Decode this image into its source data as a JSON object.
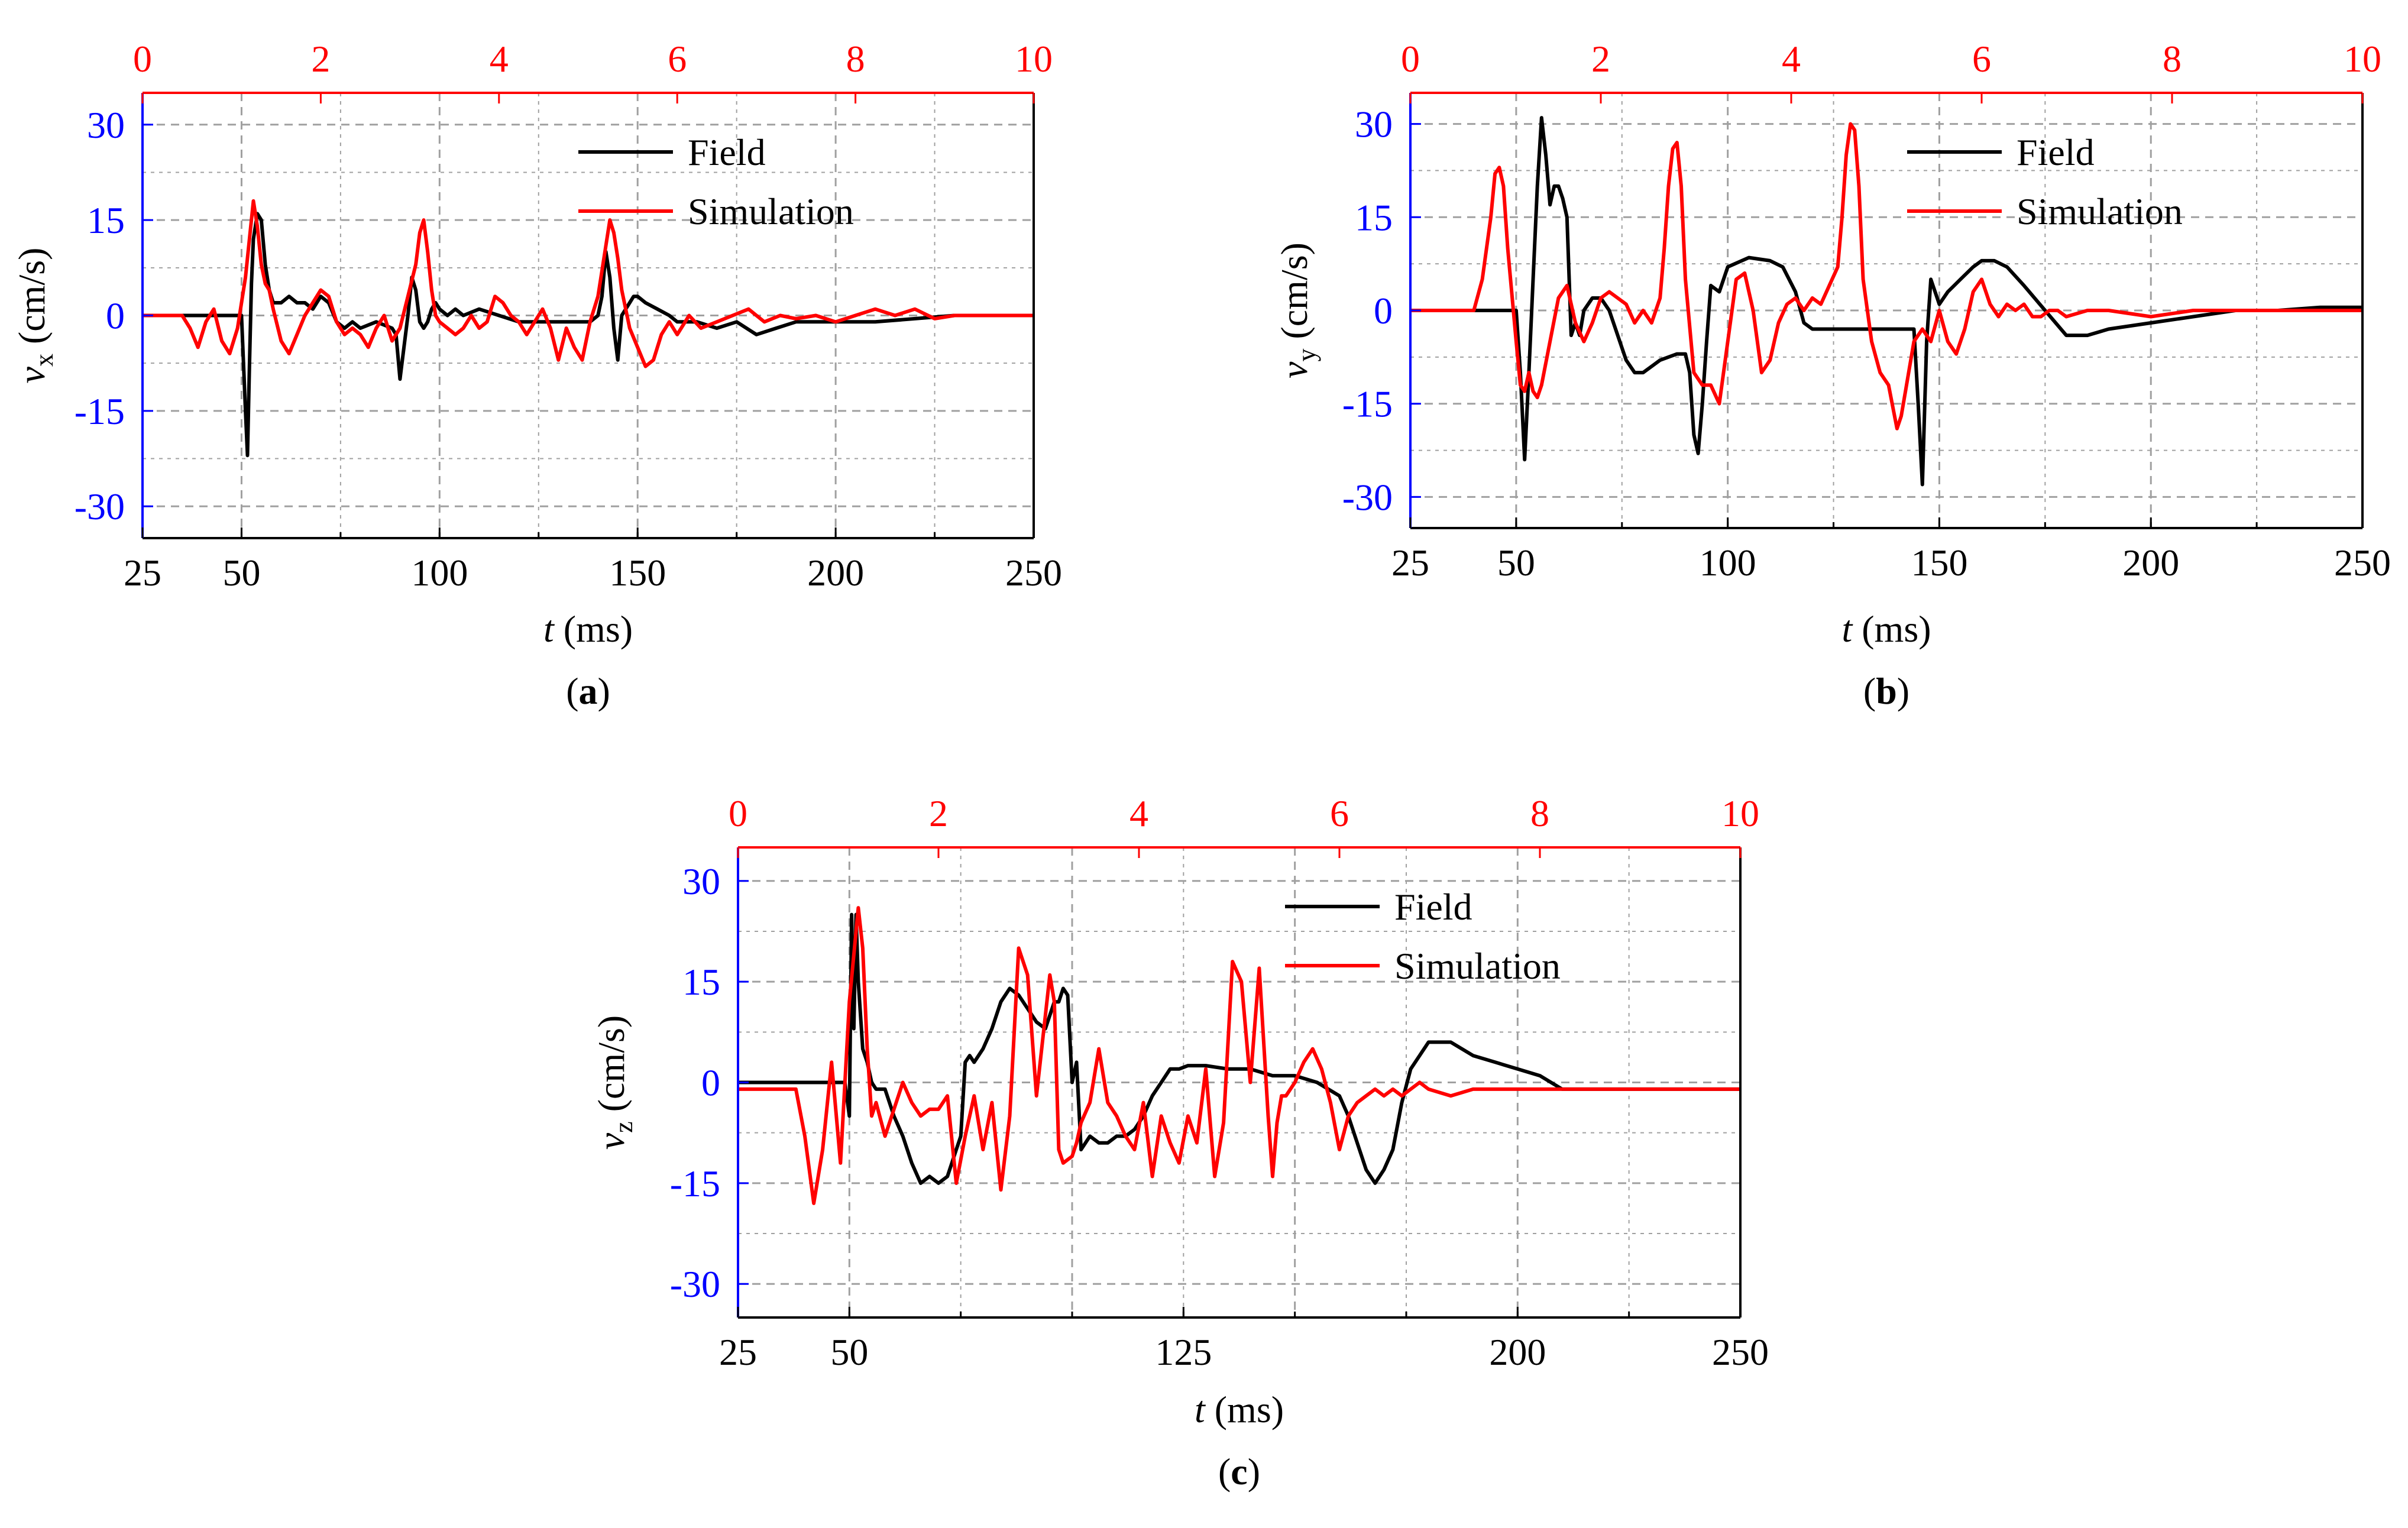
{
  "colors": {
    "field": "#000000",
    "simulation": "#ff0000",
    "left_axis": "#0000ff",
    "top_axis": "#ff0000",
    "grid": "#a0a0a0"
  },
  "chart_data": [
    {
      "id": "a",
      "type": "line",
      "panel_label": "a",
      "ylabel_symbol": "v",
      "ylabel_sub": "x",
      "ylabel_unit": " (cm/s)",
      "xlabel_symbol": "t",
      "xlabel_unit": " (ms)",
      "xlim": [
        25,
        250
      ],
      "ylim": [
        -35,
        35
      ],
      "xticks": [
        "25",
        "50",
        "100",
        "150",
        "200",
        "250"
      ],
      "yticks": [
        "30",
        "15",
        "0",
        "-15",
        "-30"
      ],
      "top_xlim": [
        0,
        10
      ],
      "top_xticks": [
        "0",
        "2",
        "4",
        "6",
        "8",
        "10"
      ],
      "legend": {
        "position": "top-right",
        "entries": [
          "Field",
          "Simulation"
        ]
      },
      "series": [
        {
          "name": "Field",
          "x": [
            25,
            48,
            50,
            51,
            51.5,
            52,
            52.5,
            53,
            54,
            55,
            56,
            57,
            58,
            60,
            62,
            64,
            66,
            68,
            70,
            72,
            74,
            76,
            78,
            80,
            84,
            88,
            89,
            90,
            91,
            92,
            93,
            94,
            95,
            96,
            97,
            98,
            99,
            100,
            102,
            104,
            106,
            110,
            115,
            120,
            125,
            130,
            135,
            138,
            140,
            141,
            142,
            143,
            144,
            145,
            146,
            147,
            148,
            149,
            150,
            152,
            155,
            158,
            160,
            165,
            170,
            175,
            180,
            185,
            190,
            200,
            210,
            220,
            230,
            240,
            250
          ],
          "y": [
            0,
            0,
            0,
            -15,
            -22,
            -8,
            5,
            12,
            16,
            15,
            8,
            4,
            2,
            2,
            3,
            2,
            2,
            1,
            3,
            2,
            -1,
            -2,
            -1,
            -2,
            -1,
            -2,
            -3,
            -10,
            -5,
            0,
            6,
            4,
            -1,
            -2,
            -1,
            1,
            2,
            1,
            0,
            1,
            0,
            1,
            0,
            -1,
            -1,
            -1,
            -1,
            -1,
            0,
            3,
            10,
            6,
            -2,
            -7,
            0,
            1,
            2,
            3,
            3,
            2,
            1,
            0,
            -1,
            -1,
            -2,
            -1,
            -3,
            -2,
            -1,
            -1,
            -1,
            -0.5,
            0,
            0,
            0
          ]
        },
        {
          "name": "Simulation",
          "x": [
            25,
            35,
            37,
            39,
            41,
            43,
            45,
            47,
            49,
            51,
            52,
            53,
            54,
            55,
            56,
            57,
            58,
            60,
            62,
            64,
            66,
            68,
            70,
            72,
            74,
            76,
            78,
            80,
            82,
            84,
            86,
            88,
            90,
            92,
            94,
            95,
            96,
            97,
            98,
            99,
            100,
            102,
            104,
            106,
            108,
            110,
            112,
            114,
            116,
            118,
            120,
            122,
            124,
            126,
            128,
            130,
            132,
            134,
            136,
            138,
            140,
            142,
            143,
            144,
            145,
            146,
            147,
            148,
            150,
            152,
            154,
            156,
            158,
            160,
            163,
            166,
            170,
            174,
            178,
            182,
            186,
            190,
            195,
            200,
            205,
            210,
            215,
            220,
            225,
            230,
            240,
            250
          ],
          "y": [
            0,
            0,
            -2,
            -5,
            -1,
            1,
            -4,
            -6,
            -2,
            6,
            12,
            18,
            14,
            8,
            5,
            4,
            1,
            -4,
            -6,
            -3,
            0,
            2,
            4,
            3,
            -1,
            -3,
            -2,
            -3,
            -5,
            -2,
            0,
            -4,
            -2,
            3,
            8,
            13,
            15,
            10,
            4,
            0,
            -1,
            -2,
            -3,
            -2,
            0,
            -2,
            -1,
            3,
            2,
            0,
            -1,
            -3,
            -1,
            1,
            -2,
            -7,
            -2,
            -5,
            -7,
            -1,
            3,
            11,
            15,
            13,
            9,
            4,
            1,
            -2,
            -5,
            -8,
            -7,
            -3,
            -1,
            -3,
            0,
            -2,
            -1,
            0,
            1,
            -1,
            0,
            -0.5,
            0,
            -1,
            0,
            1,
            0,
            1,
            -0.5,
            0,
            0,
            0
          ]
        }
      ]
    },
    {
      "id": "b",
      "type": "line",
      "panel_label": "b",
      "ylabel_symbol": "v",
      "ylabel_sub": "y",
      "ylabel_unit": " (cm/s)",
      "xlabel_symbol": "t",
      "xlabel_unit": " (ms)",
      "xlim": [
        25,
        250
      ],
      "ylim": [
        -35,
        35
      ],
      "xticks": [
        "25",
        "50",
        "100",
        "150",
        "200",
        "250"
      ],
      "yticks": [
        "30",
        "15",
        "0",
        "-15",
        "-30"
      ],
      "top_xlim": [
        0,
        10
      ],
      "top_xticks": [
        "0",
        "2",
        "4",
        "6",
        "8",
        "10"
      ],
      "legend": {
        "position": "top-right",
        "entries": [
          "Field",
          "Simulation"
        ]
      },
      "series": [
        {
          "name": "Field",
          "x": [
            25,
            50,
            51,
            52,
            53,
            54,
            55,
            56,
            57,
            58,
            59,
            60,
            61,
            62,
            63,
            64,
            65,
            66,
            68,
            70,
            72,
            74,
            76,
            78,
            80,
            84,
            88,
            90,
            91,
            92,
            93,
            94,
            95,
            96,
            98,
            100,
            105,
            110,
            113,
            116,
            118,
            120,
            125,
            130,
            140,
            144,
            145,
            146,
            147,
            148,
            149,
            150,
            152,
            155,
            158,
            160,
            163,
            166,
            170,
            175,
            180,
            185,
            190,
            200,
            210,
            220,
            230,
            240,
            250
          ],
          "y": [
            0,
            0,
            -10,
            -24,
            -10,
            5,
            20,
            31,
            25,
            17,
            20,
            20,
            18,
            15,
            -4,
            -2,
            -4,
            0,
            2,
            2,
            0,
            -4,
            -8,
            -10,
            -10,
            -8,
            -7,
            -7,
            -10,
            -20,
            -23,
            -15,
            -5,
            4,
            3,
            7,
            8.5,
            8,
            7,
            3,
            -2,
            -3,
            -3,
            -3,
            -3,
            -3,
            -15,
            -28,
            -5,
            5,
            3,
            1,
            3,
            5,
            7,
            8,
            8,
            7,
            4,
            0,
            -4,
            -4,
            -3,
            -2,
            -1,
            0,
            0,
            0.5,
            0.5
          ]
        },
        {
          "name": "Simulation",
          "x": [
            25,
            38,
            40,
            42,
            44,
            45,
            46,
            47,
            48,
            50,
            51,
            52,
            53,
            54,
            55,
            56,
            58,
            60,
            62,
            64,
            66,
            68,
            70,
            72,
            74,
            76,
            78,
            80,
            82,
            84,
            85,
            86,
            87,
            88,
            89,
            90,
            92,
            94,
            96,
            98,
            100,
            102,
            104,
            106,
            108,
            110,
            112,
            114,
            116,
            118,
            120,
            122,
            124,
            126,
            127,
            128,
            129,
            130,
            131,
            132,
            134,
            136,
            138,
            140,
            141,
            142,
            144,
            146,
            148,
            150,
            152,
            154,
            156,
            158,
            160,
            162,
            164,
            166,
            168,
            170,
            172,
            174,
            176,
            178,
            180,
            185,
            190,
            200,
            210,
            220,
            230,
            240,
            250
          ],
          "y": [
            0,
            0,
            0,
            5,
            15,
            22,
            23,
            20,
            10,
            -5,
            -12,
            -13,
            -10,
            -13,
            -14,
            -12,
            -5,
            2,
            4,
            -2,
            -5,
            -2,
            2,
            3,
            2,
            1,
            -2,
            0,
            -2,
            2,
            10,
            20,
            26,
            27,
            20,
            5,
            -10,
            -12,
            -12,
            -15,
            -5,
            5,
            6,
            0,
            -10,
            -8,
            -2,
            1,
            2,
            0,
            2,
            1,
            4,
            7,
            15,
            25,
            30,
            29,
            20,
            5,
            -5,
            -10,
            -12,
            -19,
            -17,
            -13,
            -5,
            -3,
            -5,
            0,
            -5,
            -7,
            -3,
            3,
            5,
            1,
            -1,
            1,
            0,
            1,
            -1,
            -1,
            0,
            0,
            -1,
            0,
            0,
            -1,
            0,
            0,
            0,
            0,
            0
          ]
        }
      ]
    },
    {
      "id": "c",
      "type": "line",
      "panel_label": "c",
      "ylabel_symbol": "v",
      "ylabel_sub": "z",
      "ylabel_unit": " (cm/s)",
      "xlabel_symbol": "t",
      "xlabel_unit": " (ms)",
      "xlim": [
        25,
        250
      ],
      "ylim": [
        -35,
        35
      ],
      "xticks": [
        "25",
        "50",
        "125",
        "200",
        "250"
      ],
      "yticks": [
        "30",
        "15",
        "0",
        "-15",
        "-30"
      ],
      "top_xlim": [
        0,
        10
      ],
      "top_xticks": [
        "0",
        "2",
        "4",
        "6",
        "8",
        "10"
      ],
      "legend": {
        "position": "top-right",
        "entries": [
          "Field",
          "Simulation"
        ]
      },
      "series": [
        {
          "name": "Field",
          "x": [
            25,
            49,
            50,
            50.5,
            51,
            51.5,
            52,
            53,
            54,
            55,
            56,
            58,
            60,
            62,
            64,
            66,
            68,
            70,
            72,
            74,
            75,
            76,
            77,
            78,
            80,
            82,
            84,
            86,
            88,
            90,
            92,
            94,
            96,
            97,
            98,
            99,
            100,
            101,
            102,
            104,
            106,
            108,
            110,
            112,
            114,
            116,
            118,
            120,
            122,
            124,
            126,
            130,
            135,
            140,
            145,
            150,
            155,
            160,
            162,
            164,
            166,
            168,
            170,
            172,
            174,
            176,
            178,
            180,
            185,
            190,
            195,
            200,
            205,
            210,
            220,
            230,
            240,
            250
          ],
          "y": [
            0,
            0,
            -5,
            25,
            8,
            25,
            15,
            5,
            3,
            0,
            -1,
            -1,
            -5,
            -8,
            -12,
            -15,
            -14,
            -15,
            -14,
            -10,
            -8,
            3,
            4,
            3,
            5,
            8,
            12,
            14,
            13,
            11,
            9,
            8,
            12,
            12,
            14,
            13,
            0,
            3,
            -10,
            -8,
            -9,
            -9,
            -8,
            -8,
            -7,
            -5,
            -2,
            0,
            2,
            2,
            2.5,
            2.5,
            2,
            2,
            1,
            1,
            0,
            -2,
            -5,
            -9,
            -13,
            -15,
            -13,
            -10,
            -3,
            2,
            4,
            6,
            6,
            4,
            3,
            2,
            1,
            -1,
            -1,
            -1,
            -1,
            -1
          ]
        },
        {
          "name": "Simulation",
          "x": [
            25,
            38,
            40,
            42,
            44,
            46,
            48,
            50,
            52,
            53,
            54,
            55,
            56,
            58,
            60,
            62,
            64,
            66,
            68,
            70,
            72,
            74,
            76,
            78,
            80,
            82,
            84,
            86,
            88,
            90,
            92,
            94,
            95,
            96,
            97,
            98,
            100,
            101,
            102,
            104,
            106,
            108,
            110,
            112,
            114,
            116,
            118,
            120,
            122,
            124,
            126,
            128,
            130,
            132,
            134,
            136,
            138,
            140,
            142,
            144,
            145,
            146,
            147,
            148,
            150,
            152,
            154,
            156,
            158,
            160,
            162,
            164,
            166,
            168,
            170,
            172,
            174,
            176,
            178,
            180,
            185,
            190,
            195,
            200,
            205,
            210,
            220,
            230,
            240,
            250
          ],
          "y": [
            -1,
            -1,
            -8,
            -18,
            -10,
            3,
            -12,
            12,
            26,
            20,
            5,
            -5,
            -3,
            -8,
            -4,
            0,
            -3,
            -5,
            -4,
            -4,
            -2,
            -15,
            -8,
            -2,
            -10,
            -3,
            -16,
            -5,
            20,
            16,
            -2,
            10,
            16,
            12,
            -10,
            -12,
            -11,
            -9,
            -6,
            -3,
            5,
            -3,
            -5,
            -8,
            -10,
            -3,
            -14,
            -5,
            -9,
            -12,
            -5,
            -9,
            2,
            -14,
            -6,
            18,
            15,
            0,
            17,
            -5,
            -14,
            -6,
            -2,
            -2,
            0,
            3,
            5,
            2,
            -3,
            -10,
            -5,
            -3,
            -2,
            -1,
            -2,
            -1,
            -2,
            -1,
            0,
            -1,
            -2,
            -1,
            -1,
            -1,
            -1,
            -1,
            -1,
            -1,
            -1,
            -1
          ]
        }
      ]
    }
  ]
}
